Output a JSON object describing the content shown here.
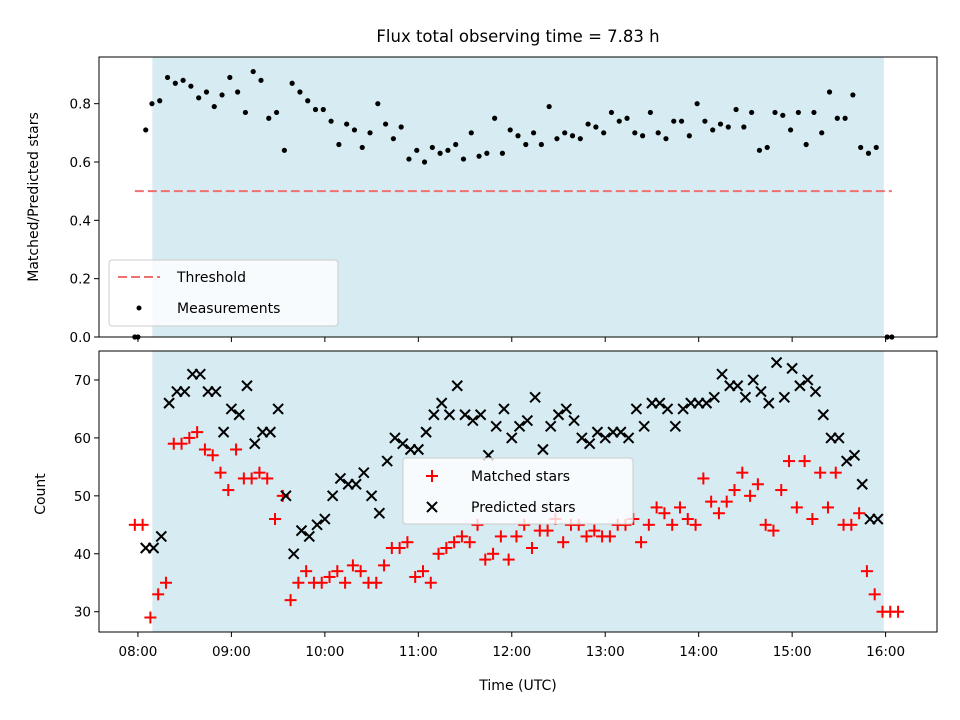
{
  "chart_data": [
    {
      "type": "scatter",
      "title": "Flux total observing time = 7.83 h",
      "xlabel": "",
      "ylabel": "Matched/Predicted stars",
      "xlim": [
        "07:35",
        "16:33"
      ],
      "ylim": [
        0,
        0.96
      ],
      "yticks": [
        "0.0",
        "0.2",
        "0.4",
        "0.6",
        "0.8"
      ],
      "observing_window": [
        "08:05",
        "15:55"
      ],
      "legend": {
        "placement": "lower-left",
        "threshold_label": "Threshold",
        "measurements_label": "Measurements"
      },
      "threshold": {
        "name": "Threshold",
        "value": 0.5,
        "x_range": [
          "07:58",
          "16:04"
        ],
        "color": "#f07070"
      },
      "series": [
        {
          "name": "Measurements",
          "color": "#000000",
          "x": [
            "07:58",
            "08:00",
            "08:05",
            "08:09",
            "08:14",
            "08:19",
            "08:24",
            "08:29",
            "08:34",
            "08:39",
            "08:44",
            "08:49",
            "08:54",
            "08:59",
            "09:04",
            "09:09",
            "09:14",
            "09:19",
            "09:24",
            "09:29",
            "09:34",
            "09:39",
            "09:44",
            "09:49",
            "09:54",
            "09:59",
            "10:04",
            "10:09",
            "10:14",
            "10:19",
            "10:24",
            "10:29",
            "10:34",
            "10:39",
            "10:44",
            "10:49",
            "10:54",
            "10:59",
            "11:04",
            "11:09",
            "11:14",
            "11:19",
            "11:24",
            "11:29",
            "11:34",
            "11:39",
            "11:44",
            "11:49",
            "11:54",
            "11:59",
            "12:04",
            "12:09",
            "12:14",
            "12:19",
            "12:24",
            "12:29",
            "12:34",
            "12:39",
            "12:44",
            "12:49",
            "12:54",
            "12:59",
            "13:04",
            "13:09",
            "13:14",
            "13:19",
            "13:24",
            "13:29",
            "13:34",
            "13:39",
            "13:44",
            "13:49",
            "13:54",
            "13:59",
            "14:04",
            "14:09",
            "14:14",
            "14:19",
            "14:24",
            "14:29",
            "14:34",
            "14:39",
            "14:44",
            "14:49",
            "14:54",
            "14:59",
            "15:04",
            "15:09",
            "15:14",
            "15:19",
            "15:24",
            "15:29",
            "15:34",
            "15:39",
            "15:44",
            "15:49",
            "15:54",
            "16:01",
            "16:04"
          ],
          "y": [
            0.0,
            0.0,
            0.71,
            0.8,
            0.81,
            0.89,
            0.87,
            0.88,
            0.86,
            0.82,
            0.84,
            0.79,
            0.83,
            0.89,
            0.84,
            0.77,
            0.91,
            0.88,
            0.75,
            0.77,
            0.64,
            0.87,
            0.84,
            0.81,
            0.78,
            0.78,
            0.74,
            0.66,
            0.73,
            0.71,
            0.65,
            0.7,
            0.8,
            0.73,
            0.68,
            0.72,
            0.61,
            0.64,
            0.6,
            0.65,
            0.63,
            0.64,
            0.66,
            0.61,
            0.7,
            0.62,
            0.63,
            0.75,
            0.63,
            0.71,
            0.69,
            0.66,
            0.7,
            0.66,
            0.79,
            0.68,
            0.7,
            0.69,
            0.68,
            0.73,
            0.72,
            0.7,
            0.77,
            0.74,
            0.75,
            0.7,
            0.69,
            0.77,
            0.7,
            0.68,
            0.74,
            0.74,
            0.69,
            0.8,
            0.74,
            0.71,
            0.73,
            0.72,
            0.78,
            0.72,
            0.77,
            0.64,
            0.65,
            0.77,
            0.76,
            0.71,
            0.77,
            0.66,
            0.77,
            0.7,
            0.84,
            0.75,
            0.75,
            0.83,
            0.65,
            0.63,
            0.65,
            0.0,
            0.0
          ]
        }
      ]
    },
    {
      "type": "scatter",
      "title": "",
      "xlabel": "Time (UTC)",
      "ylabel": "Count",
      "xlim": [
        "07:35",
        "16:33"
      ],
      "ylim": [
        26.5,
        75
      ],
      "yticks": [
        "30",
        "40",
        "50",
        "60",
        "70"
      ],
      "xticks": [
        "08:00",
        "09:00",
        "10:00",
        "11:00",
        "12:00",
        "13:00",
        "14:00",
        "15:00",
        "16:00"
      ],
      "observing_window": [
        "08:05",
        "15:55"
      ],
      "legend": {
        "placement": "center"
      },
      "series": [
        {
          "name": "Matched stars",
          "color": "#ff0000",
          "marker": "plus",
          "x": [
            "07:58",
            "08:03",
            "08:08",
            "08:13",
            "08:18",
            "08:23",
            "08:28",
            "08:33",
            "08:38",
            "08:43",
            "08:48",
            "08:53",
            "08:58",
            "09:03",
            "09:08",
            "09:13",
            "09:18",
            "09:23",
            "09:28",
            "09:33",
            "09:38",
            "09:43",
            "09:48",
            "09:53",
            "09:58",
            "10:03",
            "10:08",
            "10:13",
            "10:18",
            "10:23",
            "10:28",
            "10:33",
            "10:38",
            "10:43",
            "10:48",
            "10:53",
            "10:58",
            "11:03",
            "11:08",
            "11:13",
            "11:18",
            "11:23",
            "11:28",
            "11:33",
            "11:38",
            "11:43",
            "11:48",
            "11:53",
            "11:58",
            "12:03",
            "12:08",
            "12:13",
            "12:18",
            "12:23",
            "12:28",
            "12:33",
            "12:38",
            "12:43",
            "12:48",
            "12:53",
            "12:58",
            "13:03",
            "13:08",
            "13:13",
            "13:18",
            "13:23",
            "13:28",
            "13:33",
            "13:38",
            "13:43",
            "13:48",
            "13:53",
            "13:58",
            "14:03",
            "14:08",
            "14:13",
            "14:18",
            "14:23",
            "14:28",
            "14:33",
            "14:38",
            "14:43",
            "14:48",
            "14:53",
            "14:58",
            "15:03",
            "15:08",
            "15:13",
            "15:18",
            "15:23",
            "15:28",
            "15:33",
            "15:38",
            "15:43",
            "15:48",
            "15:53",
            "15:58",
            "16:03",
            "16:08"
          ],
          "y": [
            45,
            45,
            29,
            33,
            35,
            59,
            59,
            60,
            61,
            58,
            57,
            54,
            51,
            58,
            53,
            53,
            54,
            53,
            46,
            50,
            32,
            35,
            37,
            35,
            35,
            36,
            37,
            35,
            38,
            37,
            35,
            35,
            38,
            41,
            41,
            42,
            36,
            37,
            35,
            40,
            41,
            42,
            43,
            42,
            45,
            39,
            40,
            43,
            39,
            43,
            45,
            41,
            44,
            44,
            46,
            42,
            45,
            45,
            43,
            44,
            43,
            43,
            45,
            45,
            46,
            42,
            45,
            48,
            47,
            45,
            48,
            46,
            45,
            53,
            49,
            47,
            49,
            51,
            54,
            50,
            52,
            45,
            44,
            51,
            56,
            48,
            56,
            46,
            54,
            48,
            54,
            45,
            45,
            47,
            37,
            33,
            30,
            30,
            30
          ]
        },
        {
          "name": "Predicted stars",
          "color": "#000000",
          "marker": "x",
          "x": [
            "08:05",
            "08:10",
            "08:15",
            "08:20",
            "08:25",
            "08:30",
            "08:35",
            "08:40",
            "08:45",
            "08:50",
            "08:55",
            "09:00",
            "09:05",
            "09:10",
            "09:15",
            "09:20",
            "09:25",
            "09:30",
            "09:35",
            "09:40",
            "09:45",
            "09:50",
            "09:55",
            "10:00",
            "10:05",
            "10:10",
            "10:15",
            "10:20",
            "10:25",
            "10:30",
            "10:35",
            "10:40",
            "10:45",
            "10:50",
            "10:55",
            "11:00",
            "11:05",
            "11:10",
            "11:15",
            "11:20",
            "11:25",
            "11:30",
            "11:35",
            "11:40",
            "11:45",
            "11:50",
            "11:55",
            "12:00",
            "12:05",
            "12:10",
            "12:15",
            "12:20",
            "12:25",
            "12:30",
            "12:35",
            "12:40",
            "12:45",
            "12:50",
            "12:55",
            "13:00",
            "13:05",
            "13:10",
            "13:15",
            "13:20",
            "13:25",
            "13:30",
            "13:35",
            "13:40",
            "13:45",
            "13:50",
            "13:55",
            "14:00",
            "14:05",
            "14:10",
            "14:15",
            "14:20",
            "14:25",
            "14:30",
            "14:35",
            "14:40",
            "14:45",
            "14:50",
            "14:55",
            "15:00",
            "15:05",
            "15:10",
            "15:15",
            "15:20",
            "15:25",
            "15:30",
            "15:35",
            "15:40",
            "15:45",
            "15:50",
            "15:55"
          ],
          "y": [
            41,
            41,
            43,
            66,
            68,
            68,
            71,
            71,
            68,
            68,
            61,
            65,
            64,
            69,
            59,
            61,
            61,
            65,
            50,
            40,
            44,
            43,
            45,
            46,
            50,
            53,
            52,
            52,
            54,
            50,
            47,
            56,
            60,
            59,
            58,
            58,
            61,
            64,
            66,
            64,
            69,
            64,
            63,
            64,
            57,
            62,
            65,
            60,
            62,
            63,
            67,
            58,
            62,
            64,
            65,
            63,
            60,
            59,
            61,
            60,
            61,
            61,
            60,
            65,
            62,
            66,
            66,
            65,
            62,
            65,
            66,
            66,
            66,
            67,
            71,
            69,
            69,
            67,
            70,
            68,
            66,
            73,
            67,
            72,
            69,
            70,
            68,
            64,
            60,
            60,
            56,
            57,
            52,
            46,
            46
          ]
        }
      ]
    }
  ]
}
